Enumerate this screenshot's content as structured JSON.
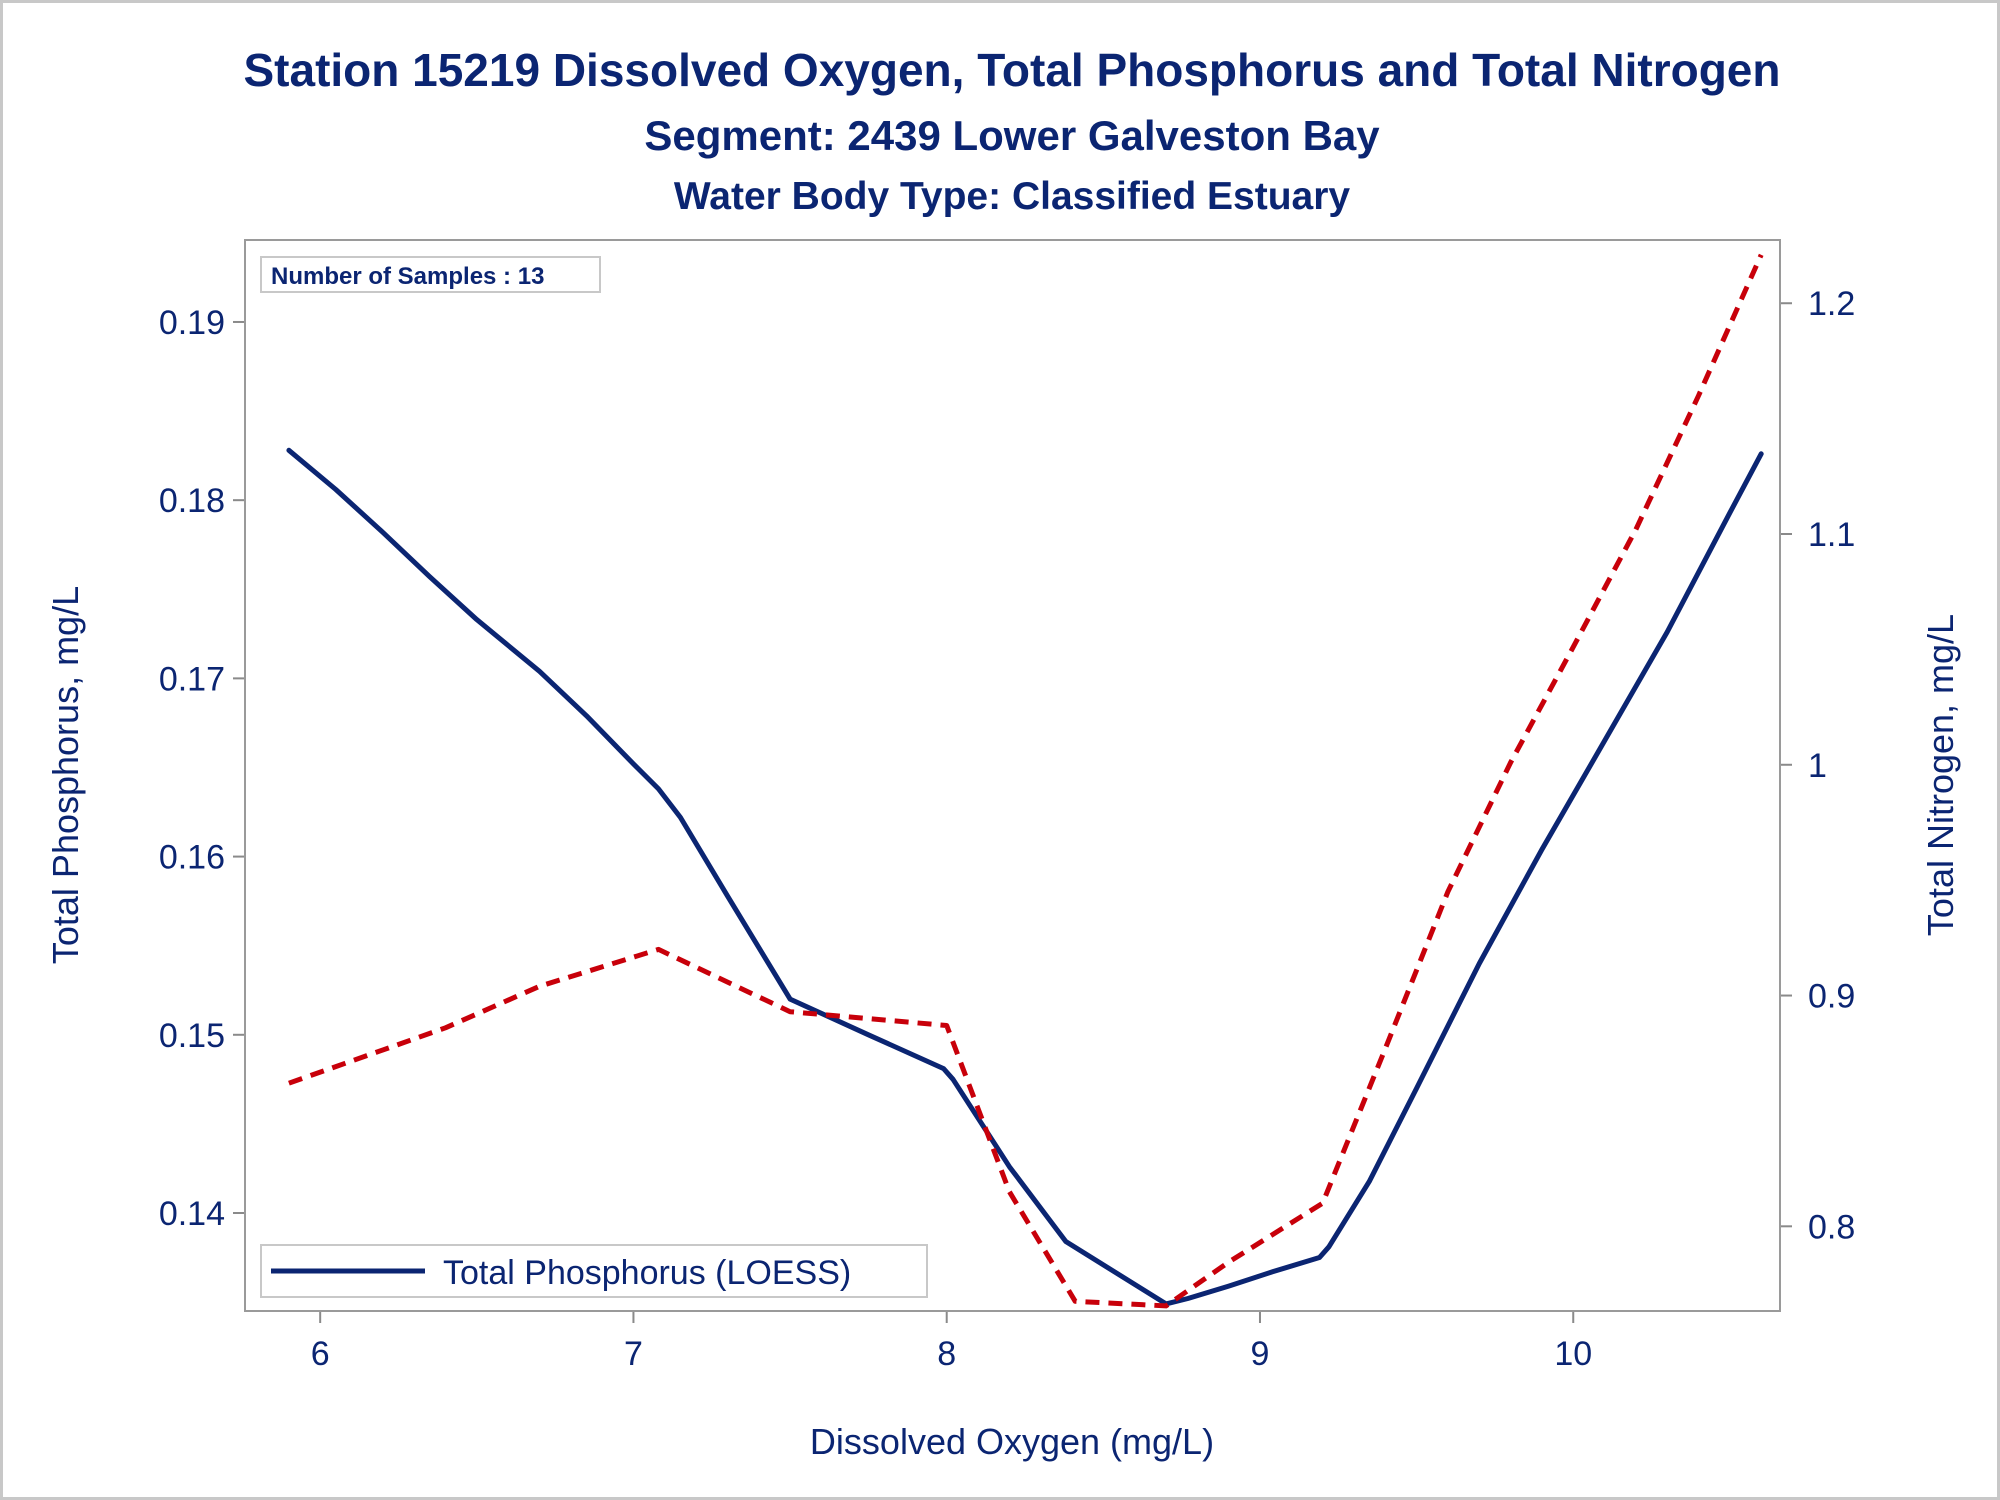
{
  "chart_data": {
    "type": "line",
    "title": "Station 15219  Dissolved Oxygen, Total Phosphorus and Total Nitrogen",
    "subtitle": "Segment: 2439  Lower Galveston Bay",
    "subtitle2": "Water Body Type: Classified Estuary",
    "annotation": "Number of Samples : 13",
    "xlabel": "Dissolved Oxygen (mg/L)",
    "ylabel": "Total Phosphorus, mg/L",
    "y2label": "Total Nitrogen, mg/L",
    "xlim": [
      5.76,
      10.66
    ],
    "ylim": [
      0.1345,
      0.1946
    ],
    "y2lim": [
      0.7633,
      1.2274
    ],
    "xticks": [
      "6",
      "7",
      "8",
      "9",
      "10"
    ],
    "yticks": [
      "0.14",
      "0.15",
      "0.16",
      "0.17",
      "0.18",
      "0.19"
    ],
    "y2ticks": [
      "0.8",
      "0.9",
      "1",
      "1.1",
      "1.2"
    ],
    "legend_position": "bottom-left",
    "series": [
      {
        "name": "Total Phosphorus (LOESS)",
        "axis": "left",
        "color": "#0b2572",
        "style": "solid",
        "x": [
          5.9,
          6.05,
          6.2,
          6.35,
          6.5,
          6.7,
          6.85,
          7.0,
          7.08,
          7.15,
          7.3,
          7.5,
          7.75,
          7.99,
          8.02,
          8.2,
          8.38,
          8.7,
          8.77,
          8.9,
          9.04,
          9.19,
          9.22,
          9.35,
          9.5,
          9.7,
          9.9,
          10.1,
          10.3,
          10.5,
          10.6
        ],
        "y": [
          0.1828,
          0.1806,
          0.1782,
          0.1757,
          0.1733,
          0.1704,
          0.1679,
          0.1652,
          0.1638,
          0.1622,
          0.1578,
          0.152,
          0.15,
          0.1481,
          0.1475,
          0.1426,
          0.1384,
          0.1349,
          0.1352,
          0.1359,
          0.1367,
          0.1375,
          0.1381,
          0.1418,
          0.147,
          0.154,
          0.1604,
          0.1665,
          0.1726,
          0.1793,
          0.1826
        ]
      },
      {
        "name": "",
        "axis": "right",
        "color": "#c8000a",
        "style": "dashed",
        "x": [
          5.9,
          6.4,
          6.7,
          7.08,
          7.5,
          8.0,
          8.2,
          8.41,
          8.7,
          8.9,
          9.2,
          9.4,
          9.6,
          9.8,
          10.0,
          10.2,
          10.4,
          10.6
        ],
        "y": [
          0.862,
          0.886,
          0.904,
          0.92,
          0.893,
          0.887,
          0.815,
          0.7675,
          0.7655,
          0.7845,
          0.81,
          0.877,
          0.945,
          1.001,
          1.051,
          1.102,
          1.16,
          1.221
        ]
      }
    ]
  }
}
